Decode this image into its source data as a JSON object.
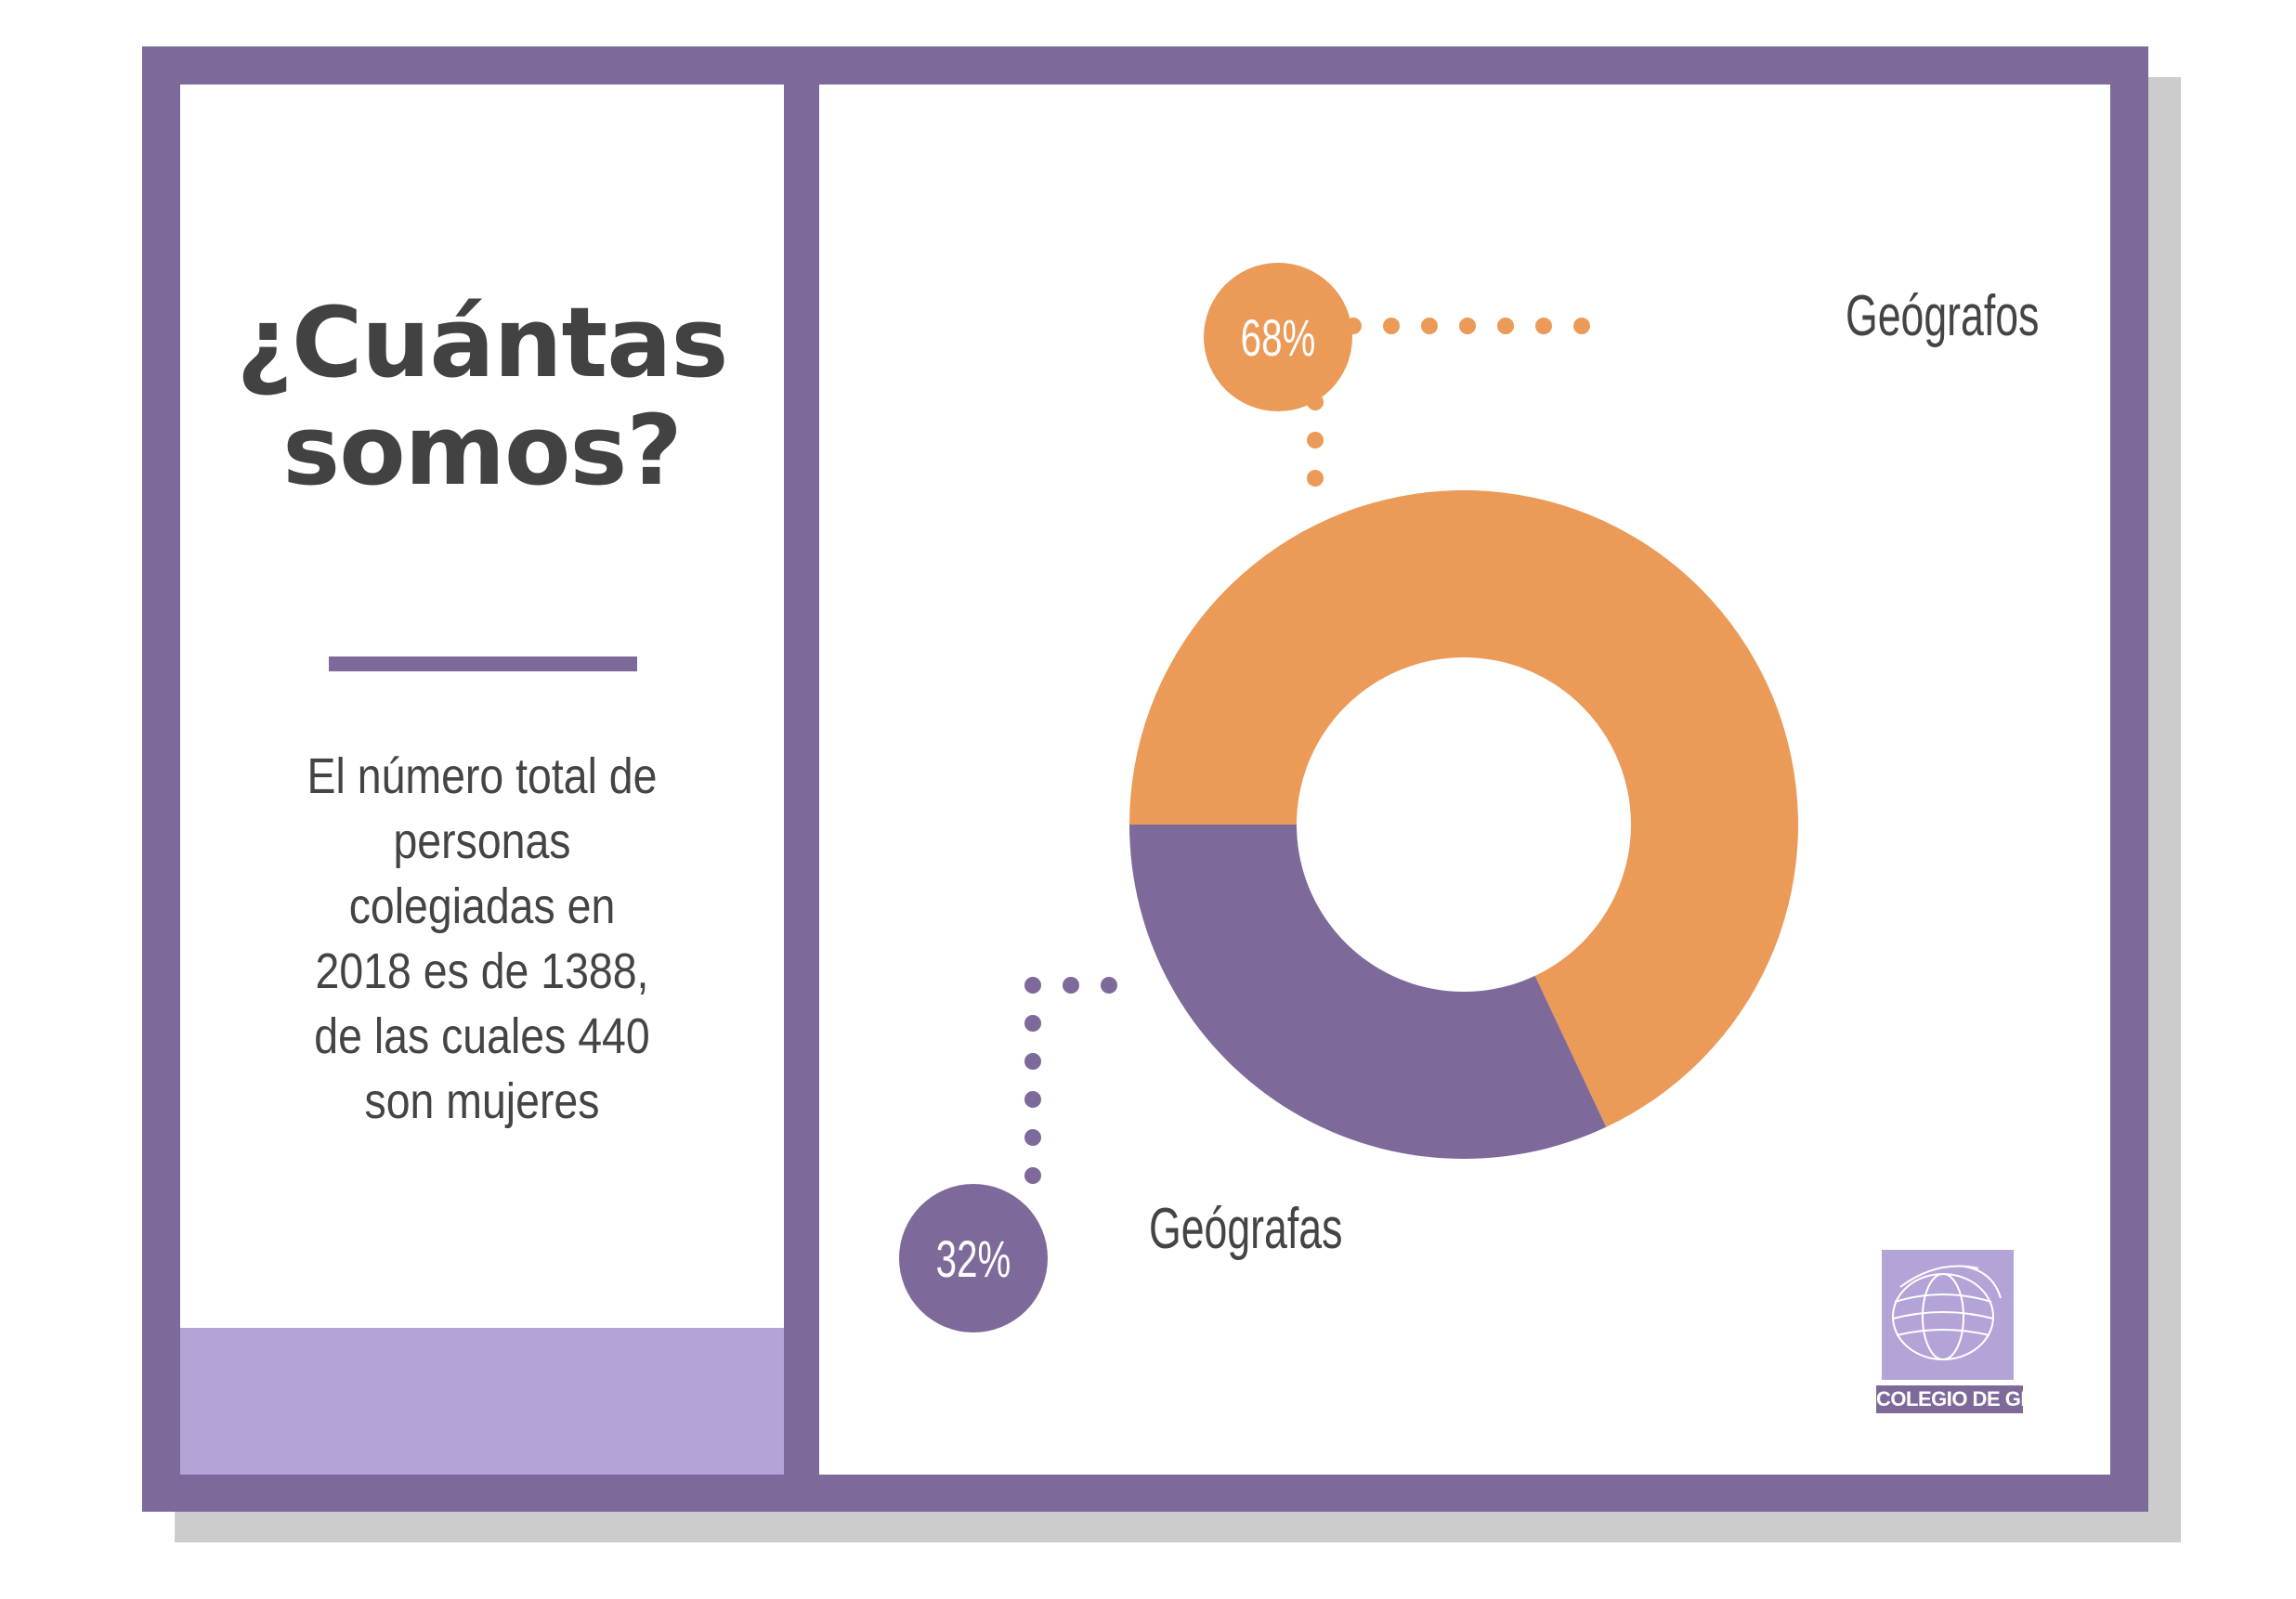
{
  "left_panel": {
    "title_line1": "¿Cuántas",
    "title_line2": "somos?",
    "description_lines": [
      "El número total de",
      "personas",
      "colegiadas en",
      "2018 es de 1388,",
      "de las cuales 440",
      "son mujeres"
    ]
  },
  "logo": {
    "text": "COLEGIO DE GEÓGRAFOS",
    "icon": "globe-icon"
  },
  "colors": {
    "purple": "#7d6a9b",
    "light_purple": "#b4a3d7",
    "orange": "#eb9a58",
    "text_dark": "#424242"
  },
  "chart_data": {
    "type": "pie",
    "donut": true,
    "title": "",
    "slices": [
      {
        "label": "Geógrafos",
        "value": 68,
        "value_label": "68%",
        "color": "#eb9a58"
      },
      {
        "label": "Geógrafas",
        "value": 32,
        "value_label": "32%",
        "color": "#7d6a9b"
      }
    ]
  }
}
